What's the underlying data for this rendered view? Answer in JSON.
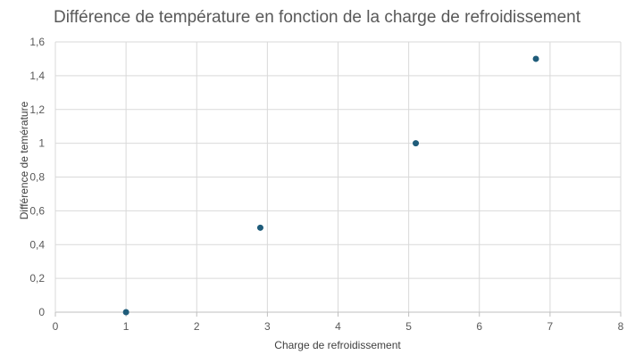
{
  "chart_data": {
    "type": "scatter",
    "title": "Différence de température en fonction de la charge de refroidissement",
    "xlabel": "Charge de refroidissement",
    "ylabel": "Différence de temérature",
    "xlim": [
      0,
      8
    ],
    "ylim": [
      0,
      1.6
    ],
    "x_ticks": [
      "0",
      "1",
      "2",
      "3",
      "4",
      "5",
      "6",
      "7",
      "8"
    ],
    "y_ticks": [
      "0",
      "0,2",
      "0,4",
      "0,6",
      "0,8",
      "1",
      "1,2",
      "1,4",
      "1,6"
    ],
    "grid": true,
    "legend": "none",
    "series": [
      {
        "color": "#1f5c7a",
        "points": [
          {
            "x": 1.0,
            "y": 0.0
          },
          {
            "x": 2.9,
            "y": 0.5
          },
          {
            "x": 5.1,
            "y": 1.0
          },
          {
            "x": 6.8,
            "y": 1.5
          }
        ]
      }
    ],
    "colors": {
      "grid": "#d9d9d9",
      "axis": "#bfbfbf",
      "marker": "#1f5c7a"
    }
  }
}
